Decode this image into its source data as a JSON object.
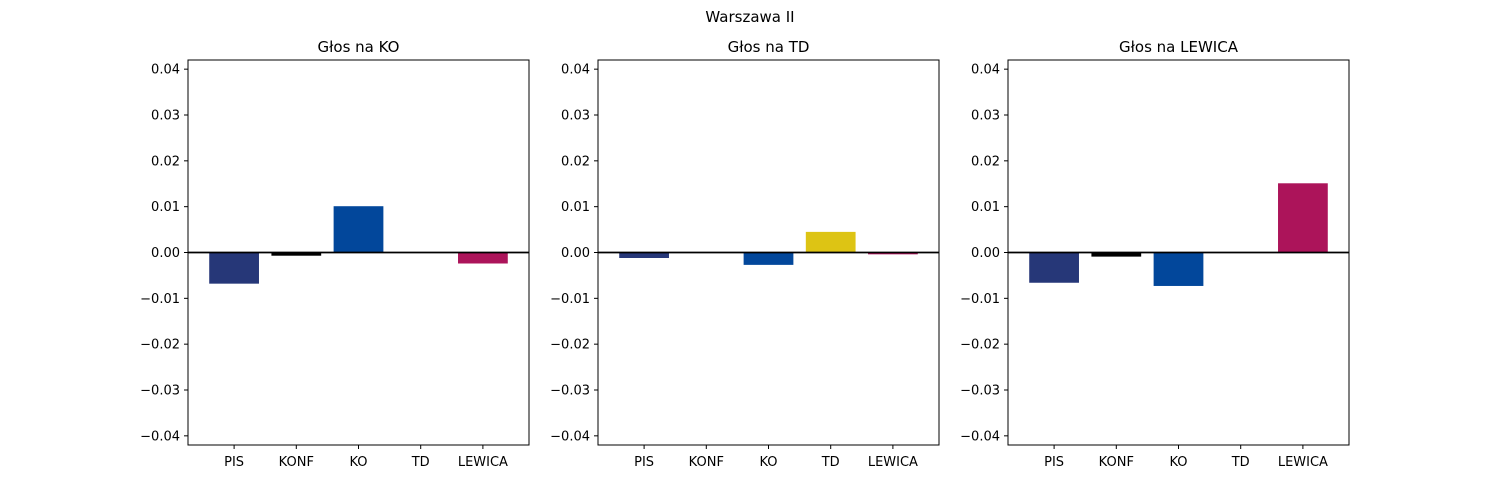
{
  "figure": {
    "suptitle": "Warszawa II"
  },
  "colors": {
    "PIS": "#263778",
    "KONF": "#000000",
    "KO": "#02479B",
    "TD": "#DDC414",
    "LEWICA": "#AC145A"
  },
  "chart_data": [
    {
      "type": "bar",
      "title": "Głos na KO",
      "categories": [
        "PIS",
        "KONF",
        "KO",
        "TD",
        "LEWICA"
      ],
      "values": [
        -0.0068,
        -0.0007,
        0.0101,
        0.0,
        -0.0024
      ],
      "ylim": [
        -0.042,
        0.042
      ],
      "yticks": [
        -0.04,
        -0.03,
        -0.02,
        -0.01,
        0.0,
        0.01,
        0.02,
        0.03,
        0.04
      ],
      "ytick_labels": [
        "−0.04",
        "−0.03",
        "−0.02",
        "−0.01",
        "0.00",
        "0.01",
        "0.02",
        "0.03",
        "0.04"
      ],
      "zero_line": true,
      "grid": false
    },
    {
      "type": "bar",
      "title": "Głos na TD",
      "categories": [
        "PIS",
        "KONF",
        "KO",
        "TD",
        "LEWICA"
      ],
      "values": [
        -0.0012,
        0.0,
        -0.0027,
        0.0045,
        -0.0004
      ],
      "ylim": [
        -0.042,
        0.042
      ],
      "yticks": [
        -0.04,
        -0.03,
        -0.02,
        -0.01,
        0.0,
        0.01,
        0.02,
        0.03,
        0.04
      ],
      "ytick_labels": [
        "−0.04",
        "−0.03",
        "−0.02",
        "−0.01",
        "0.00",
        "0.01",
        "0.02",
        "0.03",
        "0.04"
      ],
      "zero_line": true,
      "grid": false
    },
    {
      "type": "bar",
      "title": "Głos na LEWICA",
      "categories": [
        "PIS",
        "KONF",
        "KO",
        "TD",
        "LEWICA"
      ],
      "values": [
        -0.0066,
        -0.0009,
        -0.0073,
        0.0,
        0.0151
      ],
      "ylim": [
        -0.042,
        0.042
      ],
      "yticks": [
        -0.04,
        -0.03,
        -0.02,
        -0.01,
        0.0,
        0.01,
        0.02,
        0.03,
        0.04
      ],
      "ytick_labels": [
        "−0.04",
        "−0.03",
        "−0.02",
        "−0.01",
        "0.00",
        "0.01",
        "0.02",
        "0.03",
        "0.04"
      ],
      "zero_line": true,
      "grid": false
    }
  ]
}
